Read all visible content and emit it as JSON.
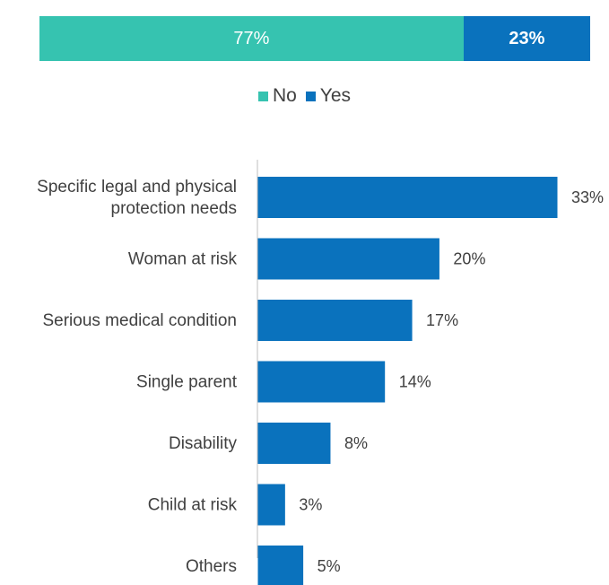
{
  "colors": {
    "no": "#36c3b0",
    "yes": "#0a72bd",
    "axis": "#bfbfbf"
  },
  "chart_data": [
    {
      "type": "bar",
      "orientation": "horizontal-stacked",
      "categories": [
        ""
      ],
      "series": [
        {
          "name": "No",
          "values": [
            77
          ],
          "label": "77%"
        },
        {
          "name": "Yes",
          "values": [
            23
          ],
          "label": "23%"
        }
      ],
      "xlim": [
        0,
        100
      ],
      "legend": "bottom"
    },
    {
      "type": "bar",
      "orientation": "horizontal",
      "categories": [
        [
          "Specific legal and physical",
          "protection needs"
        ],
        [
          "Woman at risk"
        ],
        [
          "Serious medical condition"
        ],
        [
          "Single parent"
        ],
        [
          "Disability"
        ],
        [
          "Child at risk"
        ],
        [
          "Others"
        ]
      ],
      "values": [
        33,
        20,
        17,
        14,
        8,
        3,
        5
      ],
      "value_labels": [
        "33%",
        "20%",
        "17%",
        "14%",
        "8%",
        "3%",
        "5%"
      ],
      "xlim": [
        0,
        33
      ]
    }
  ]
}
